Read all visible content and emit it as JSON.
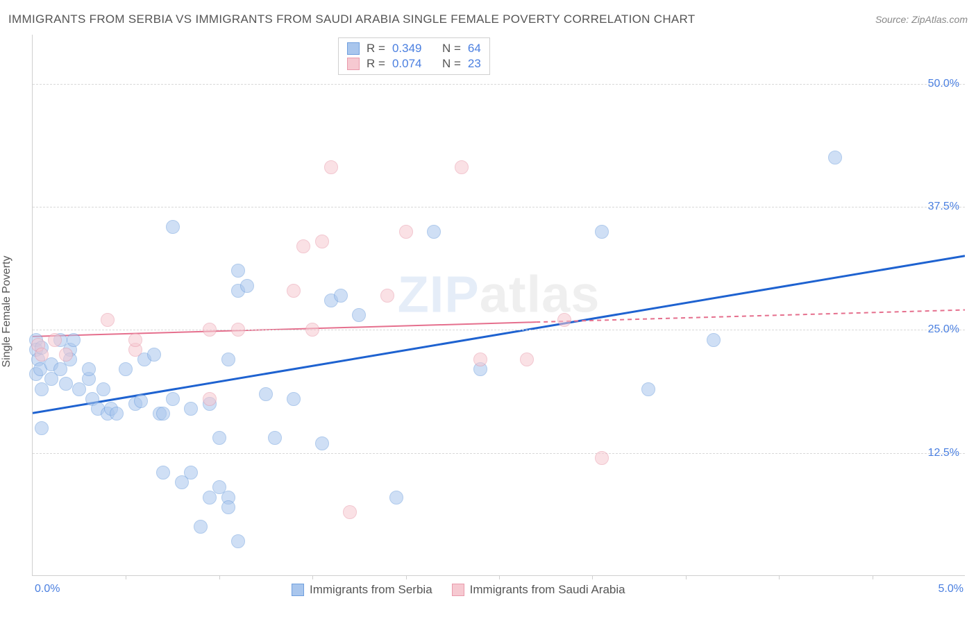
{
  "title": "IMMIGRANTS FROM SERBIA VS IMMIGRANTS FROM SAUDI ARABIA SINGLE FEMALE POVERTY CORRELATION CHART",
  "source_prefix": "Source: ",
  "source_name": "ZipAtlas.com",
  "y_axis_label": "Single Female Poverty",
  "watermark_zip": "ZIP",
  "watermark_atlas": "atlas",
  "chart": {
    "type": "scatter",
    "background_color": "#ffffff",
    "grid_color": "#d8d8d8",
    "axis_color": "#cfcfcf",
    "tick_label_color": "#4a7fe0",
    "y_min": 0,
    "y_max": 55,
    "y_ticks": [
      12.5,
      25.0,
      37.5,
      50.0
    ],
    "y_tick_labels": [
      "12.5%",
      "25.0%",
      "37.5%",
      "50.0%"
    ],
    "x_min": 0,
    "x_max": 5.0,
    "x_tick_positions": [
      0.5,
      1.0,
      1.5,
      2.0,
      2.5,
      3.0,
      3.5,
      4.0,
      4.5
    ],
    "x_start_label": "0.0%",
    "x_end_label": "5.0%",
    "point_radius": 10,
    "point_opacity": 0.55,
    "series": [
      {
        "name": "Immigrants from Serbia",
        "fill_color": "#a9c6ed",
        "stroke_color": "#6f9fde",
        "trend_color": "#1e62d0",
        "trend_width": 3,
        "trend_style": "solid",
        "r_value": "0.349",
        "n_value": "64",
        "trend": {
          "x1": 0.0,
          "y1": 16.5,
          "x2": 5.0,
          "y2": 32.5
        },
        "points": [
          [
            0.02,
            24.0
          ],
          [
            0.02,
            23.0
          ],
          [
            0.03,
            22.0
          ],
          [
            0.02,
            20.5
          ],
          [
            0.05,
            23.2
          ],
          [
            0.04,
            21.0
          ],
          [
            0.05,
            19.0
          ],
          [
            0.1,
            20.0
          ],
          [
            0.1,
            21.5
          ],
          [
            0.15,
            24.0
          ],
          [
            0.15,
            21.0
          ],
          [
            0.18,
            19.5
          ],
          [
            0.2,
            23.0
          ],
          [
            0.2,
            22.0
          ],
          [
            0.22,
            24.0
          ],
          [
            0.25,
            19.0
          ],
          [
            0.05,
            15.0
          ],
          [
            0.3,
            20.0
          ],
          [
            0.3,
            21.0
          ],
          [
            0.32,
            18.0
          ],
          [
            0.35,
            17.0
          ],
          [
            0.38,
            19.0
          ],
          [
            0.4,
            16.5
          ],
          [
            0.42,
            17.0
          ],
          [
            0.45,
            16.5
          ],
          [
            0.5,
            21.0
          ],
          [
            0.55,
            17.5
          ],
          [
            0.58,
            17.8
          ],
          [
            0.6,
            22.0
          ],
          [
            0.65,
            22.5
          ],
          [
            0.68,
            16.5
          ],
          [
            0.7,
            16.5
          ],
          [
            0.7,
            10.5
          ],
          [
            0.75,
            18.0
          ],
          [
            0.75,
            35.5
          ],
          [
            0.8,
            9.5
          ],
          [
            0.85,
            17.0
          ],
          [
            0.85,
            10.5
          ],
          [
            0.9,
            5.0
          ],
          [
            0.95,
            8.0
          ],
          [
            0.95,
            17.5
          ],
          [
            1.0,
            14.0
          ],
          [
            1.0,
            9.0
          ],
          [
            1.05,
            8.0
          ],
          [
            1.05,
            7.0
          ],
          [
            1.05,
            22.0
          ],
          [
            1.1,
            3.5
          ],
          [
            1.1,
            31.0
          ],
          [
            1.1,
            29.0
          ],
          [
            1.15,
            29.5
          ],
          [
            1.25,
            18.5
          ],
          [
            1.3,
            14.0
          ],
          [
            1.4,
            18.0
          ],
          [
            1.55,
            13.5
          ],
          [
            1.6,
            28.0
          ],
          [
            1.65,
            28.5
          ],
          [
            1.75,
            26.5
          ],
          [
            1.95,
            8.0
          ],
          [
            2.15,
            35.0
          ],
          [
            2.4,
            21.0
          ],
          [
            3.05,
            35.0
          ],
          [
            3.3,
            19.0
          ],
          [
            3.65,
            24.0
          ],
          [
            4.3,
            42.5
          ]
        ]
      },
      {
        "name": "Immigrants from Saudi Arabia",
        "fill_color": "#f6c9d1",
        "stroke_color": "#e99aab",
        "trend_color": "#e56f8d",
        "trend_width": 2,
        "trend_style": "solid",
        "trend_dash_after": 2.7,
        "r_value": "0.074",
        "n_value": "23",
        "trend": {
          "x1": 0.0,
          "y1": 24.3,
          "x2": 5.0,
          "y2": 27.0
        },
        "points": [
          [
            0.03,
            23.5
          ],
          [
            0.05,
            22.5
          ],
          [
            0.12,
            24.0
          ],
          [
            0.18,
            22.5
          ],
          [
            0.4,
            26.0
          ],
          [
            0.55,
            23.0
          ],
          [
            0.55,
            24.0
          ],
          [
            0.95,
            18.0
          ],
          [
            0.95,
            25.0
          ],
          [
            1.1,
            25.0
          ],
          [
            1.4,
            29.0
          ],
          [
            1.45,
            33.5
          ],
          [
            1.5,
            25.0
          ],
          [
            1.55,
            34.0
          ],
          [
            1.6,
            41.5
          ],
          [
            1.7,
            6.5
          ],
          [
            1.9,
            28.5
          ],
          [
            2.0,
            35.0
          ],
          [
            2.3,
            41.5
          ],
          [
            2.4,
            22.0
          ],
          [
            2.65,
            22.0
          ],
          [
            2.85,
            26.0
          ],
          [
            3.05,
            12.0
          ]
        ]
      }
    ],
    "legend_stats": {
      "r_label": "R =",
      "n_label": "N ="
    },
    "bottom_legend_labels": [
      "Immigrants from Serbia",
      "Immigrants from Saudi Arabia"
    ]
  }
}
